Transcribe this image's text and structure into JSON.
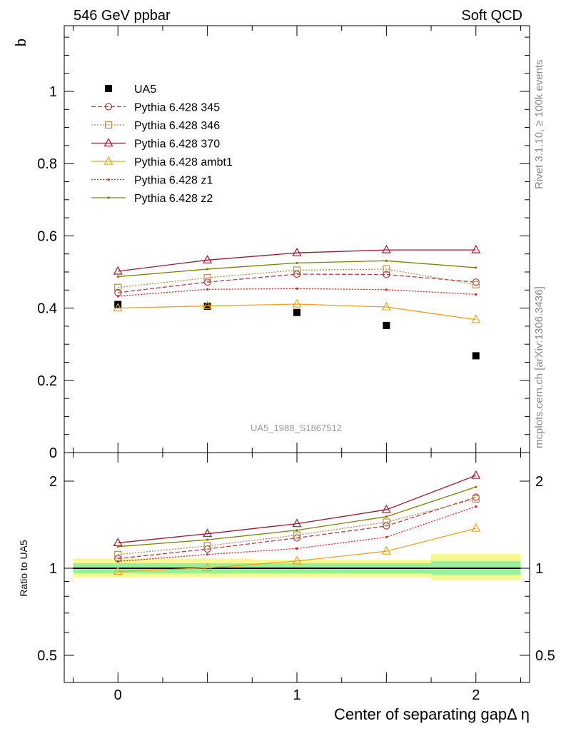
{
  "header": {
    "left": "546 GeV ppbar",
    "right": "Soft QCD"
  },
  "side": {
    "top": "Rivet 3.1.10, ≥ 100k events",
    "bottom": "mcplots.cern.ch [arXiv:1306.3436]"
  },
  "watermark": "UA5_1988_S1867512",
  "colors": {
    "ua5": "#000000",
    "p345": "#b03a48",
    "p346": "#b88a50",
    "p370": "#9b1a2e",
    "ambt1": "#f0a020",
    "z1": "#e02020",
    "z2": "#808000",
    "band_green": "#98f098",
    "band_yellow": "#f8f890"
  },
  "chart_data": [
    {
      "type": "line",
      "ylabel": "b",
      "ylim": [
        0,
        1.2
      ],
      "yticks": [
        0,
        0.2,
        0.4,
        0.6,
        0.8,
        1
      ],
      "ytick_labels": [
        "0",
        "0.2",
        "0.4",
        "0.6",
        "0.8",
        "1"
      ],
      "xlim": [
        -0.3,
        2.3
      ],
      "legend_position": "top-left",
      "x": [
        0,
        0.5,
        1,
        1.5,
        2
      ],
      "series": [
        {
          "name": "UA5",
          "values": [
            0.41,
            0.405,
            0.388,
            0.352,
            0.268
          ],
          "marker": "square",
          "style": "none",
          "key": "ua5"
        },
        {
          "name": "Pythia 6.428 345",
          "values": [
            0.443,
            0.472,
            0.494,
            0.493,
            0.472
          ],
          "marker": "circle",
          "style": "dashed",
          "key": "p345"
        },
        {
          "name": "Pythia 6.428 346",
          "values": [
            0.457,
            0.484,
            0.505,
            0.508,
            0.465
          ],
          "marker": "square-open",
          "style": "dotted",
          "key": "p346"
        },
        {
          "name": "Pythia 6.428 370",
          "values": [
            0.502,
            0.533,
            0.553,
            0.561,
            0.561
          ],
          "marker": "triangle",
          "style": "solid",
          "key": "p370"
        },
        {
          "name": "Pythia 6.428 ambt1",
          "values": [
            0.4,
            0.406,
            0.411,
            0.403,
            0.368
          ],
          "marker": "triangle",
          "style": "solid",
          "key": "ambt1"
        },
        {
          "name": "Pythia 6.428 z1",
          "values": [
            0.433,
            0.452,
            0.454,
            0.451,
            0.438
          ],
          "marker": "dot",
          "style": "dotted",
          "key": "z1"
        },
        {
          "name": "Pythia 6.428 z2",
          "values": [
            0.487,
            0.508,
            0.525,
            0.531,
            0.512
          ],
          "marker": "dot",
          "style": "solid",
          "key": "z2"
        }
      ]
    },
    {
      "type": "line",
      "ylabel": "Ratio to UA5",
      "xlabel": "Center of separating gapΔ η",
      "xticks": [
        0,
        1,
        2
      ],
      "xtick_labels": [
        "0",
        "1",
        "2"
      ],
      "ytick_labels": [
        "0.5",
        "1",
        "2"
      ],
      "yscale": "log",
      "ylim": [
        0.4,
        2.4
      ],
      "x": [
        0,
        0.5,
        1,
        1.5,
        2
      ],
      "band": {
        "inner": [
          [
            0.96,
            1.04
          ],
          [
            0.96,
            1.04
          ],
          [
            0.96,
            1.04
          ],
          [
            0.96,
            1.04
          ],
          [
            0.95,
            1.06
          ]
        ],
        "outer": [
          [
            0.93,
            1.08
          ],
          [
            0.93,
            1.08
          ],
          [
            0.93,
            1.07
          ],
          [
            0.93,
            1.07
          ],
          [
            0.91,
            1.12
          ]
        ]
      },
      "series": [
        {
          "name": "Pythia 6.428 345",
          "values": [
            1.08,
            1.165,
            1.273,
            1.4,
            1.76
          ],
          "key": "p345"
        },
        {
          "name": "Pythia 6.428 346",
          "values": [
            1.115,
            1.195,
            1.302,
            1.443,
            1.735
          ],
          "key": "p346"
        },
        {
          "name": "Pythia 6.428 370",
          "values": [
            1.224,
            1.316,
            1.425,
            1.594,
            2.093
          ],
          "key": "p370"
        },
        {
          "name": "Pythia 6.428 ambt1",
          "values": [
            0.975,
            1.002,
            1.059,
            1.145,
            1.373
          ],
          "key": "ambt1"
        },
        {
          "name": "Pythia 6.428 z1",
          "values": [
            1.056,
            1.116,
            1.17,
            1.281,
            1.634
          ],
          "key": "z1"
        },
        {
          "name": "Pythia 6.428 z2",
          "values": [
            1.188,
            1.254,
            1.353,
            1.508,
            1.91
          ],
          "key": "z2"
        }
      ]
    }
  ]
}
